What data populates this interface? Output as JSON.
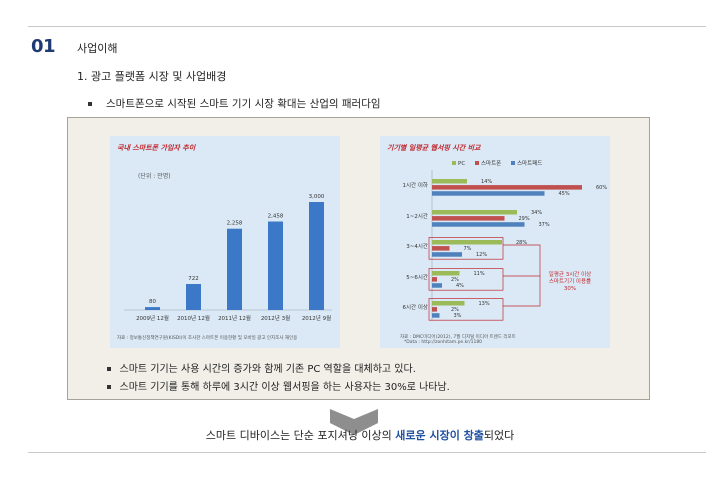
{
  "section": {
    "number": "01",
    "title": "사업이해",
    "subtitle": "1. 광고 플랫폼 시장 및 사업배경",
    "bullet": "스마트폰으로 시작된 스마트 기기 시장 확대는 산업의 패러다임"
  },
  "panel": {
    "bullets": [
      "스마트 기기는 사용 시간의 증가와 함께 기존 PC 역할을 대체하고 있다.",
      "스마트 기기를 통해 하루에 3시간 이상 웹서핑을 하는 사용자는 30%로 나타남."
    ]
  },
  "chart_data": [
    {
      "type": "bar",
      "title": "국내 스마트폰 가입자 추이",
      "unit_label": "(단위 : 만명)",
      "categories": [
        "2009년 12월",
        "2010년 12월",
        "2011년 12월",
        "2012년 3월",
        "2012년 9월"
      ],
      "values": [
        80,
        722,
        2258,
        2458,
        3000
      ],
      "value_labels": [
        "80",
        "722",
        "2,258",
        "2,458",
        "3,000"
      ],
      "ylim": [
        0,
        3000
      ],
      "source": "자료 : 정보통신정책연구원(KISDI)이 조사한 스마트폰 이용현황 및 모바일 광고 인지조사 재인용",
      "bar_color": "#3c78c8"
    },
    {
      "type": "bar",
      "orientation": "horizontal",
      "title": "기기별 일평균 웹서핑 시간 비교",
      "categories": [
        "1시간 이하",
        "1~2시간",
        "3~4시간",
        "5~6시간",
        "6시간 이상"
      ],
      "series": [
        {
          "name": "PC",
          "color": "#9bbb59",
          "values": [
            14,
            34,
            28,
            11,
            13
          ]
        },
        {
          "name": "스마트폰",
          "color": "#c0504d",
          "values": [
            60,
            29,
            7,
            2,
            2
          ]
        },
        {
          "name": "스마트패드",
          "color": "#4f81bd",
          "values": [
            45,
            37,
            12,
            4,
            3
          ]
        }
      ],
      "value_suffix": "%",
      "xlim": [
        0,
        60
      ],
      "annotation": [
        "일평균 3시간 이상",
        "스마트기기 이용률",
        "30%"
      ],
      "source_lines": [
        "자료 : DMC미디어(2012), 7월 디지털 미디어 트렌드 리포트",
        "*Data : http://zonhitam.pe.kr/1180"
      ]
    }
  ],
  "conclusion": {
    "prefix": "스마트 디바이스는 단순 포지셔닝 이상의 ",
    "emphasis": "새로운 시장이 창출",
    "suffix": "되었다"
  },
  "colors": {
    "section_number": "#1f3a73",
    "chart_title": "#c0282e",
    "panel_bg": "#f1efe8",
    "chart_bg": "#dbe9f6",
    "emphasis": "#1f4f9f",
    "chevron": "#8e8e8e"
  }
}
